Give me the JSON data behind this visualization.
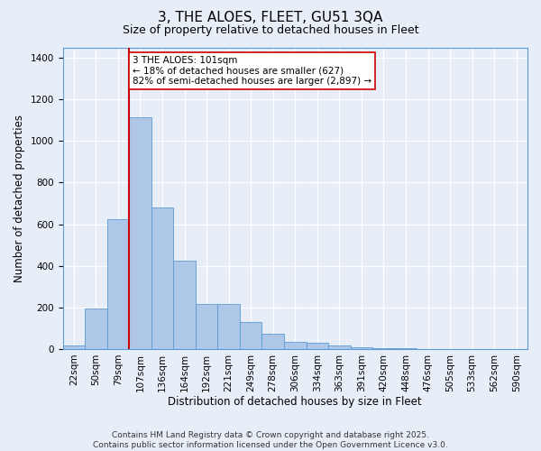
{
  "title_line1": "3, THE ALOES, FLEET, GU51 3QA",
  "title_line2": "Size of property relative to detached houses in Fleet",
  "xlabel": "Distribution of detached houses by size in Fleet",
  "ylabel": "Number of detached properties",
  "bar_labels": [
    "22sqm",
    "50sqm",
    "79sqm",
    "107sqm",
    "136sqm",
    "164sqm",
    "192sqm",
    "221sqm",
    "249sqm",
    "278sqm",
    "306sqm",
    "334sqm",
    "363sqm",
    "391sqm",
    "420sqm",
    "448sqm",
    "476sqm",
    "505sqm",
    "533sqm",
    "562sqm",
    "590sqm"
  ],
  "bar_values": [
    15,
    195,
    625,
    1115,
    680,
    425,
    215,
    215,
    130,
    75,
    35,
    30,
    18,
    10,
    5,
    5,
    0,
    0,
    0,
    0,
    0
  ],
  "bar_color": "#aec7e8",
  "bar_edge_color": "#5b9bd5",
  "vline_color": "#cc0000",
  "vline_index": 3,
  "ylim": [
    0,
    1450
  ],
  "yticks": [
    0,
    200,
    400,
    600,
    800,
    1000,
    1200,
    1400
  ],
  "annotation_text": "3 THE ALOES: 101sqm\n← 18% of detached houses are smaller (627)\n82% of semi-detached houses are larger (2,897) →",
  "annotation_box_color": "#ffffff",
  "annotation_box_edge": "#cc0000",
  "footer_line1": "Contains HM Land Registry data © Crown copyright and database right 2025.",
  "footer_line2": "Contains public sector information licensed under the Open Government Licence v3.0.",
  "bg_color": "#e8eef8",
  "grid_color": "#ffffff",
  "title_fontsize": 11,
  "subtitle_fontsize": 9,
  "tick_fontsize": 7.5,
  "label_fontsize": 8.5,
  "annotation_fontsize": 7.5,
  "footer_fontsize": 6.5
}
